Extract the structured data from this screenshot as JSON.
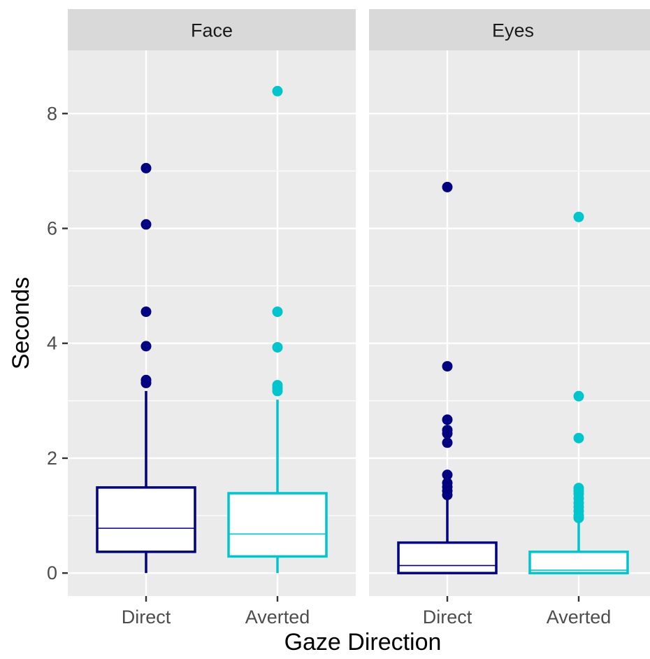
{
  "chart_data": {
    "type": "boxplot",
    "xlabel": "Gaze Direction",
    "ylabel": "Seconds",
    "ylim": [
      -0.4,
      9.1
    ],
    "yticks": [
      0,
      2,
      4,
      6,
      8
    ],
    "grid": true,
    "categories": [
      "Direct",
      "Averted"
    ],
    "colors": {
      "Direct": "#000080",
      "Averted": "#00c5cd"
    },
    "panels": [
      {
        "strip": "Face",
        "boxes": [
          {
            "category": "Direct",
            "min": 0.0,
            "q1": 0.37,
            "median": 0.78,
            "q3": 1.49,
            "max": 3.17,
            "outliers": [
              7.05,
              6.07,
              4.55,
              3.95,
              3.36,
              3.31
            ]
          },
          {
            "category": "Averted",
            "min": 0.0,
            "q1": 0.29,
            "median": 0.68,
            "q3": 1.39,
            "max": 3.02,
            "outliers": [
              8.39,
              4.55,
              3.93,
              3.27,
              3.22,
              3.17
            ]
          }
        ]
      },
      {
        "strip": "Eyes",
        "boxes": [
          {
            "category": "Direct",
            "min": 0.0,
            "q1": 0.0,
            "median": 0.13,
            "q3": 0.53,
            "max": 1.32,
            "outliers": [
              6.72,
              3.6,
              2.67,
              2.49,
              2.43,
              2.27,
              1.71,
              1.57,
              1.5,
              1.43,
              1.36
            ]
          },
          {
            "category": "Averted",
            "min": 0.0,
            "q1": 0.0,
            "median": 0.05,
            "q3": 0.37,
            "max": 0.91,
            "outliers": [
              6.2,
              3.08,
              2.35,
              1.48,
              1.43,
              1.38,
              1.3,
              1.22,
              1.15,
              1.08,
              1.0,
              0.96
            ]
          }
        ]
      }
    ]
  }
}
